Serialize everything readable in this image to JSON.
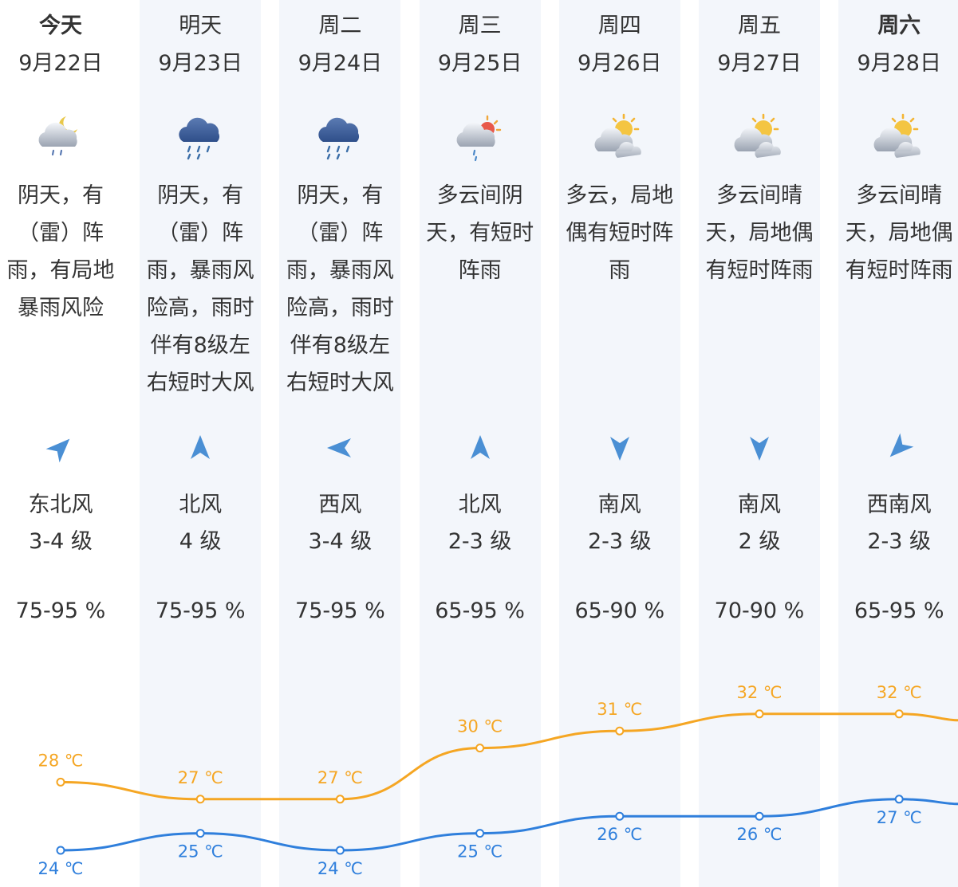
{
  "colors": {
    "high": "#f5a623",
    "low": "#2f7fdc",
    "column_bg": "#f3f6fb",
    "text": "#333333"
  },
  "days": [
    {
      "day": "今天",
      "date": "9月22日",
      "bold": true,
      "icon": "night-cloud-rain-icon",
      "desc": [
        "阴天，有",
        "（雷）阵",
        "雨，有局地",
        "暴雨风险"
      ],
      "wind_dir": "东北风",
      "wind_level": "3-4 级",
      "arrow_angle": 225,
      "humidity": "75-95 %",
      "high": 28,
      "high_label": "28 ℃",
      "low": 24,
      "low_label": "24 ℃"
    },
    {
      "day": "明天",
      "date": "9月23日",
      "bold": false,
      "icon": "rain-cloud-icon",
      "desc": [
        "阴天，有",
        "（雷）阵",
        "雨，暴雨风",
        "险高，雨时",
        "伴有8级左",
        "右短时大风"
      ],
      "wind_dir": "北风",
      "wind_level": "4 级",
      "arrow_angle": 180,
      "humidity": "75-95 %",
      "high": 27,
      "high_label": "27 ℃",
      "low": 25,
      "low_label": "25 ℃"
    },
    {
      "day": "周二",
      "date": "9月24日",
      "bold": false,
      "icon": "rain-cloud-icon",
      "desc": [
        "阴天，有",
        "（雷）阵",
        "雨，暴雨风",
        "险高，雨时",
        "伴有8级左",
        "右短时大风"
      ],
      "wind_dir": "西风",
      "wind_level": "3-4 级",
      "arrow_angle": 90,
      "humidity": "75-95 %",
      "high": 27,
      "high_label": "27 ℃",
      "low": 24,
      "low_label": "24 ℃"
    },
    {
      "day": "周三",
      "date": "9月25日",
      "bold": false,
      "icon": "sun-cloud-rain-icon",
      "desc": [
        "多云间阴",
        "天，有短时",
        "阵雨"
      ],
      "wind_dir": "北风",
      "wind_level": "2-3 级",
      "arrow_angle": 180,
      "humidity": "65-95 %",
      "high": 30,
      "high_label": "30 ℃",
      "low": 25,
      "low_label": "25 ℃"
    },
    {
      "day": "周四",
      "date": "9月26日",
      "bold": false,
      "icon": "partly-cloudy-icon",
      "desc": [
        "多云，局地",
        "偶有短时阵",
        "雨"
      ],
      "wind_dir": "南风",
      "wind_level": "2-3 级",
      "arrow_angle": 0,
      "humidity": "65-90 %",
      "high": 31,
      "high_label": "31 ℃",
      "low": 26,
      "low_label": "26 ℃"
    },
    {
      "day": "周五",
      "date": "9月27日",
      "bold": false,
      "icon": "partly-cloudy-icon",
      "desc": [
        "多云间晴",
        "天，局地偶",
        "有短时阵雨"
      ],
      "wind_dir": "南风",
      "wind_level": "2 级",
      "arrow_angle": 0,
      "humidity": "70-90 %",
      "high": 32,
      "high_label": "32 ℃",
      "low": 26,
      "low_label": "26 ℃"
    },
    {
      "day": "周六",
      "date": "9月28日",
      "bold": true,
      "icon": "partly-cloudy-icon",
      "desc": [
        "多云间晴",
        "天，局地偶",
        "有短时阵雨"
      ],
      "wind_dir": "西南风",
      "wind_level": "2-3 级",
      "arrow_angle": 45,
      "humidity": "65-95 %",
      "high": 32,
      "high_label": "32 ℃",
      "low": 27,
      "low_label": "27 ℃"
    }
  ]
}
